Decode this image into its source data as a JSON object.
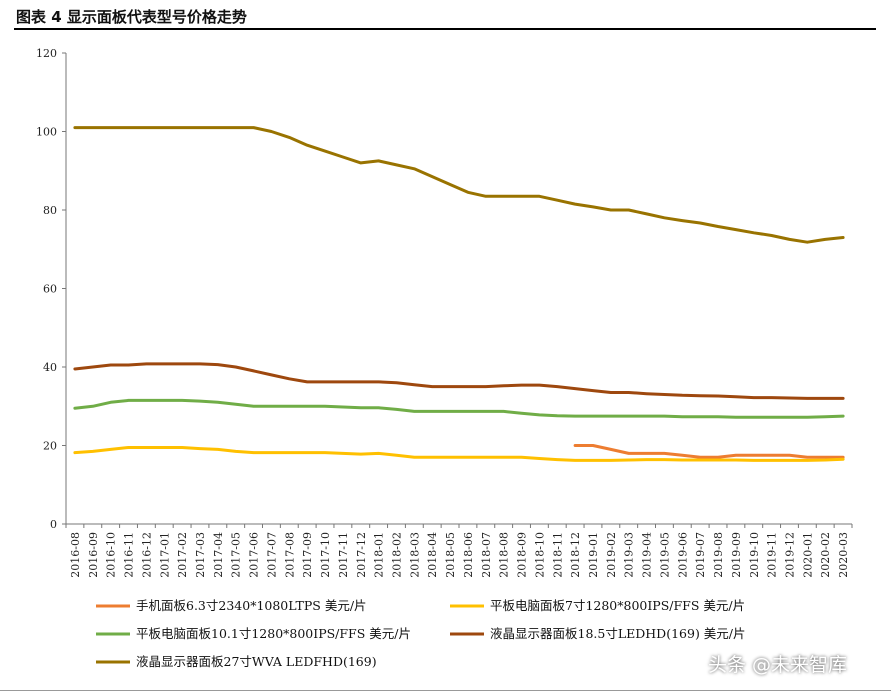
{
  "header": {
    "title": "图表 4 显示面板代表型号价格走势"
  },
  "watermark": "头条 @未来智库",
  "chart_data": {
    "type": "line",
    "title": "图表 4 显示面板代表型号价格走势",
    "xlabel": "",
    "ylabel": "",
    "ylim": [
      0,
      120
    ],
    "yticks": [
      0,
      20,
      40,
      60,
      80,
      100,
      120
    ],
    "grid": false,
    "legend_position": "bottom",
    "x": [
      "2016-08",
      "2016-09",
      "2016-10",
      "2016-11",
      "2016-12",
      "2017-01",
      "2017-02",
      "2017-03",
      "2017-04",
      "2017-05",
      "2017-06",
      "2017-07",
      "2017-08",
      "2017-09",
      "2017-10",
      "2017-11",
      "2017-12",
      "2018-01",
      "2018-02",
      "2018-03",
      "2018-04",
      "2018-05",
      "2018-06",
      "2018-07",
      "2018-08",
      "2018-09",
      "2018-10",
      "2018-11",
      "2018-12",
      "2019-01",
      "2019-02",
      "2019-03",
      "2019-04",
      "2019-05",
      "2019-06",
      "2019-07",
      "2019-08",
      "2019-09",
      "2019-10",
      "2019-11",
      "2019-12",
      "2020-01",
      "2020-02",
      "2020-03"
    ],
    "series": [
      {
        "name": "手机面板6.3寸2340*1080LTPS 美元/片",
        "color": "#ed7d31",
        "values": [
          null,
          null,
          null,
          null,
          null,
          null,
          null,
          null,
          null,
          null,
          null,
          null,
          null,
          null,
          null,
          null,
          null,
          null,
          null,
          null,
          null,
          null,
          null,
          null,
          null,
          null,
          null,
          null,
          20,
          20,
          19,
          18,
          18,
          18,
          17.5,
          17,
          17,
          17.5,
          17.5,
          17.5,
          17.5,
          17,
          17,
          17
        ]
      },
      {
        "name": "平板电脑面板7寸1280*800IPS/FFS 美元/片",
        "color": "#ffc000",
        "values": [
          18.2,
          18.5,
          19,
          19.5,
          19.5,
          19.5,
          19.5,
          19.2,
          19,
          18.5,
          18.2,
          18.2,
          18.2,
          18.2,
          18.2,
          18,
          17.8,
          18,
          17.5,
          17,
          17,
          17,
          17,
          17,
          17,
          17,
          16.7,
          16.4,
          16.2,
          16.2,
          16.2,
          16.3,
          16.4,
          16.4,
          16.3,
          16.3,
          16.3,
          16.3,
          16.2,
          16.2,
          16.2,
          16.2,
          16.3,
          16.5
        ]
      },
      {
        "name": "平板电脑面板10.1寸1280*800IPS/FFS 美元/片",
        "color": "#70ad47",
        "values": [
          29.5,
          30,
          31,
          31.5,
          31.5,
          31.5,
          31.5,
          31.3,
          31,
          30.5,
          30,
          30,
          30,
          30,
          30,
          29.8,
          29.6,
          29.6,
          29.2,
          28.7,
          28.7,
          28.7,
          28.7,
          28.7,
          28.7,
          28.2,
          27.8,
          27.6,
          27.5,
          27.5,
          27.5,
          27.5,
          27.5,
          27.5,
          27.3,
          27.3,
          27.3,
          27.2,
          27.2,
          27.2,
          27.2,
          27.2,
          27.3,
          27.5
        ]
      },
      {
        "name": "液晶显示器面板18.5寸LEDHD(169) 美元/片",
        "color": "#9e480e",
        "values": [
          39.5,
          40,
          40.5,
          40.5,
          40.8,
          40.8,
          40.8,
          40.8,
          40.6,
          40,
          39,
          38,
          37,
          36.2,
          36.2,
          36.2,
          36.2,
          36.2,
          36,
          35.5,
          35,
          35,
          35,
          35,
          35.2,
          35.4,
          35.4,
          35,
          34.5,
          34,
          33.5,
          33.5,
          33.2,
          33,
          32.8,
          32.7,
          32.6,
          32.4,
          32.2,
          32.2,
          32.1,
          32,
          32,
          32
        ]
      },
      {
        "name": "液晶显示器面板27寸WVA LEDFHD(169)",
        "color": "#997300",
        "values": [
          101,
          101,
          101,
          101,
          101,
          101,
          101,
          101,
          101,
          101,
          101,
          100,
          98.5,
          96.5,
          95,
          93.5,
          92,
          92.5,
          91.5,
          90.5,
          88.5,
          86.5,
          84.5,
          83.5,
          83.5,
          83.5,
          83.5,
          82.5,
          81.5,
          80.8,
          80,
          80,
          79,
          78,
          77.3,
          76.7,
          75.8,
          75,
          74.2,
          73.5,
          72.5,
          71.8,
          72.5,
          73
        ]
      }
    ]
  }
}
